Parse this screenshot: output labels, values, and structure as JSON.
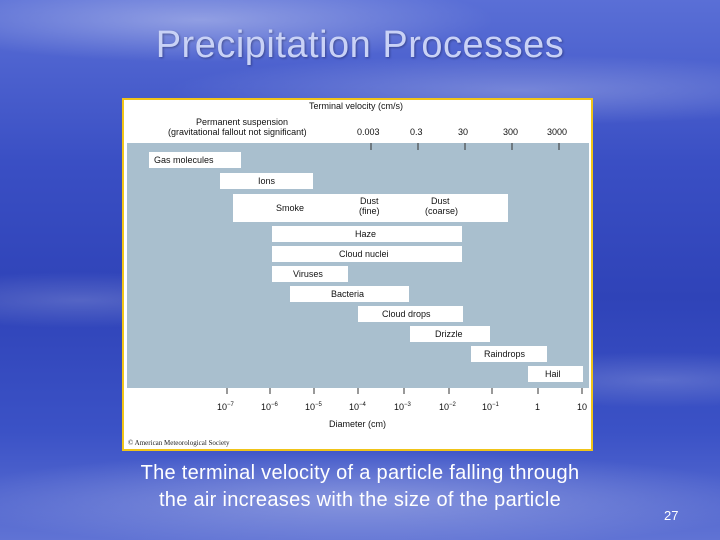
{
  "slide": {
    "title": "Precipitation Processes",
    "caption_line1": "The terminal velocity of a particle falling through",
    "caption_line2": "the air increases with the size of the particle",
    "slide_number": "27"
  },
  "figure": {
    "copyright": "© American Meteorological Society",
    "top_axis_title": "Terminal velocity (cm/s)",
    "permanent_suspension": "Permanent suspension",
    "permanent_suspension_note": "(gravitational fallout not significant)",
    "top_ticks": [
      "0.003",
      "0.3",
      "30",
      "300",
      "3000"
    ],
    "bottom_axis_title": "Diameter (cm)",
    "bottom_ticks": [
      "10",
      "10",
      "10",
      "10",
      "10",
      "10",
      "10",
      "1",
      "10"
    ],
    "bottom_tick_exponents": [
      "−7",
      "−6",
      "−5",
      "−4",
      "−3",
      "−2",
      "−1",
      "",
      ""
    ],
    "bars": [
      {
        "label": "Gas molecules"
      },
      {
        "label": "Ions"
      },
      {
        "label": "Smoke",
        "sub_labels": [
          "Dust",
          "(fine)",
          "Dust",
          "(coarse)"
        ]
      },
      {
        "label": "Haze"
      },
      {
        "label": "Cloud nuclei"
      },
      {
        "label": "Viruses"
      },
      {
        "label": "Bacteria"
      },
      {
        "label": "Cloud drops"
      },
      {
        "label": "Drizzle"
      },
      {
        "label": "Raindrops"
      },
      {
        "label": "Hail"
      }
    ],
    "colors": {
      "panel": "#a9bfce",
      "bar": "#ffffff",
      "frame": "#f0c419"
    }
  }
}
